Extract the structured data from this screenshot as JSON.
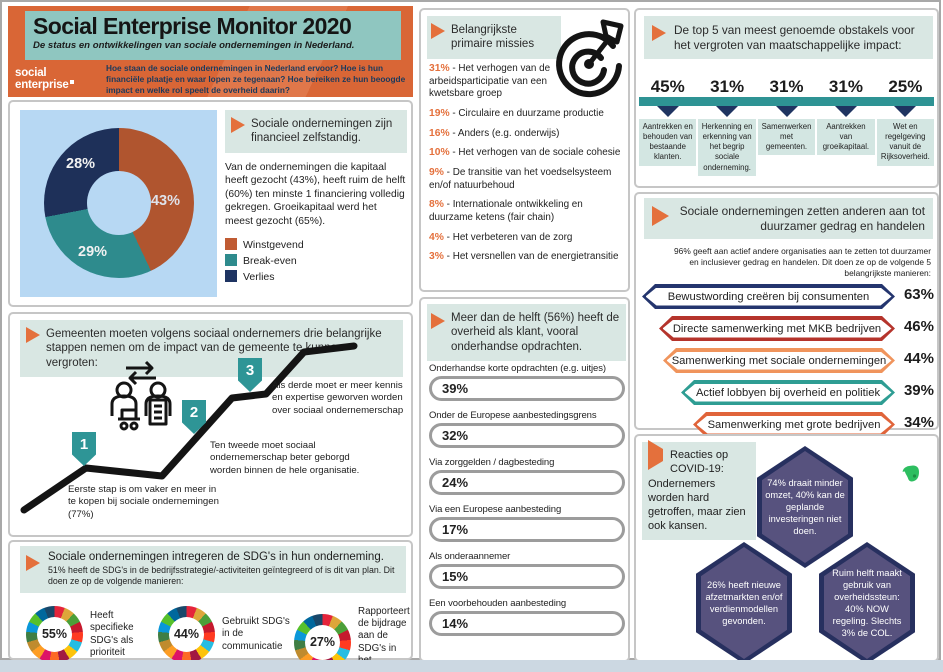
{
  "header": {
    "title": "Social Enterprise Monitor 2020",
    "subtitle": "De status en ontwikkelingen van sociale ondernemingen in Nederland.",
    "logo_line1": "social",
    "logo_line2": "enterprise",
    "intro": "Hoe staan de sociale ondernemingen in Nederland ervoor? Hoe is hun financiële plaatje en waar lopen ze tegenaan? Hoe bereiken ze hun beoogde impact en welke rol speelt de overheid daarin?"
  },
  "finance": {
    "heading": "Sociale ondernemingen zijn financieel zelfstandig.",
    "body": "Van de ondernemingen die kapitaal heeft gezocht (43%), heeft ruim de helft (60%) ten minste 1 financiering volledig gekregen. Groeikapitaal werd het meest gezocht (65%).",
    "donut_labels": [
      "43%",
      "29%",
      "28%"
    ],
    "legend": [
      {
        "label": "Winstgevend",
        "color": "#c05b33"
      },
      {
        "label": "Break-even",
        "color": "#2e8b8d"
      },
      {
        "label": "Verlies",
        "color": "#1e3462"
      }
    ]
  },
  "gemeenten": {
    "heading": "Gemeenten moeten volgens sociaal ondernemers drie belangrijke stappen nemen om de impact van de gemeente te kunnen vergroten:",
    "steps": [
      {
        "num": "1",
        "text": "Eerste stap is om vaker en meer in te kopen bij sociale ondernemingen (77%)"
      },
      {
        "num": "2",
        "text": "Ten tweede moet sociaal ondernemerschap beter geborgd worden binnen de hele organisatie."
      },
      {
        "num": "3",
        "text": "Als derde moet er meer kennis en expertise geworven worden over sociaal ondernemerschap"
      }
    ]
  },
  "sdg": {
    "heading": "Sociale ondernemingen intregeren de SDG's in hun onderneming.",
    "subtext": "51% heeft de SDG's in de bedrijfsstrategie/-activiteiten geïntegreerd of is dit van plan. Dit doen ze op de volgende manieren:",
    "items": [
      {
        "pct": "55%",
        "label": "Heeft specifieke SDG's als prioriteit"
      },
      {
        "pct": "44%",
        "label": "Gebruikt SDG's in de communicatie"
      },
      {
        "pct": "27%",
        "label": "Rapporteert de bijdrage aan de SDG's in het jaarverslag"
      }
    ]
  },
  "missies": {
    "heading": "Belangrijkste primaire missies",
    "separator": "-",
    "items": [
      {
        "pct": "31%",
        "label": "Het verhogen van de arbeidsparticipatie van een kwetsbare groep"
      },
      {
        "pct": "19%",
        "label": "Circulaire en duurzame productie"
      },
      {
        "pct": "16%",
        "label": "Anders (e.g. onderwijs)"
      },
      {
        "pct": "10%",
        "label": "Het verhogen van de sociale cohesie"
      },
      {
        "pct": "9%",
        "label": "De transitie van het voedselsysteem en/of natuurbehoud"
      },
      {
        "pct": "8%",
        "label": "Internationale ontwikkeling en duurzame ketens (fair chain)"
      },
      {
        "pct": "4%",
        "label": "Het verbeteren van de zorg"
      },
      {
        "pct": "3%",
        "label": "Het versnellen van de energietransitie"
      }
    ]
  },
  "overheid": {
    "heading": "Meer dan de helft (56%) heeft de overheid als klant, vooral onderhandse opdrachten.",
    "bars": [
      {
        "label": "Onderhandse korte opdrachten (e.g. uitjes)",
        "pct": "39%",
        "value": 39
      },
      {
        "label": "Onder de Europese aanbestedingsgrens",
        "pct": "32%",
        "value": 32
      },
      {
        "label": "Via zorggelden / dagbesteding",
        "pct": "24%",
        "value": 24
      },
      {
        "label": "Via een Europese aanbesteding",
        "pct": "17%",
        "value": 17
      },
      {
        "label": "Als onderaannemer",
        "pct": "15%",
        "value": 15
      },
      {
        "label": "Een voorbehouden aanbesteding",
        "pct": "14%",
        "value": 14
      }
    ]
  },
  "obstakels": {
    "heading": "De top 5 van meest genoemde obstakels voor het vergroten van maatschappelijke impact:",
    "items": [
      {
        "pct": "45%",
        "label": "Aantrekken en behouden van bestaande klanten."
      },
      {
        "pct": "31%",
        "label": "Herkenning en erkenning van het begrip sociale onderneming."
      },
      {
        "pct": "31%",
        "label": "Samenwerken met gemeenten."
      },
      {
        "pct": "31%",
        "label": "Aantrekken van groeikapitaal."
      },
      {
        "pct": "25%",
        "label": "Wet en regelgeving vanuit de Rijksoverheid."
      }
    ]
  },
  "duurzamer": {
    "heading": "Sociale ondernemingen zetten anderen aan tot duurzamer gedrag en handelen",
    "subtext": "96% geeft aan actief andere organisaties aan te zetten tot duurzamer en inclusiever gedrag en handelen. Dit doen ze op de volgende 5 belangrijkste manieren:",
    "items": [
      {
        "label": "Bewustwording creëren bij consumenten",
        "pct": "63%",
        "color": "#24356e"
      },
      {
        "label": "Directe samenwerking met MKB bedrijven",
        "pct": "46%",
        "color": "#b5342c"
      },
      {
        "label": "Samenwerking met sociale ondernemingen",
        "pct": "44%",
        "color": "#f0945c"
      },
      {
        "label": "Actief lobbyen bij overheid en politiek",
        "pct": "39%",
        "color": "#2e9d93"
      },
      {
        "label": "Samenwerking met grote bedrijven",
        "pct": "34%",
        "color": "#e0643a"
      }
    ]
  },
  "covid": {
    "heading": "Reacties op COVID-19: Ondernemers worden hard getroffen, maar zien ook kansen.",
    "hexagons": [
      {
        "text": "74% draait minder omzet, 40% kan de geplande investeringen niet doen."
      },
      {
        "text": "26% heeft nieuwe afzetmarkten en/of verdienmodellen gevonden."
      },
      {
        "text": "Ruim helft maakt gebruik van overheidssteun: 40% NOW regeling. Slechts 3% de COL."
      }
    ]
  },
  "chart_data": [
    {
      "type": "pie",
      "title": "Sociale ondernemingen zijn financieel zelfstandig.",
      "categories": [
        "Winstgevend",
        "Break-even",
        "Verlies"
      ],
      "values": [
        43,
        29,
        28
      ],
      "colors": [
        "#b0552f",
        "#2e8b8d",
        "#1e3059"
      ],
      "legend_position": "right"
    },
    {
      "type": "bar",
      "title": "Belangrijkste primaire missies",
      "categories": [
        "Het verhogen van de arbeidsparticipatie van een kwetsbare groep",
        "Circulaire en duurzame productie",
        "Anders (e.g. onderwijs)",
        "Het verhogen van de sociale cohesie",
        "De transitie van het voedselsysteem en/of natuurbehoud",
        "Internationale ontwikkeling en duurzame ketens (fair chain)",
        "Het verbeteren van de zorg",
        "Het versnellen van de energietransitie"
      ],
      "values": [
        31,
        19,
        16,
        10,
        9,
        8,
        4,
        3
      ]
    },
    {
      "type": "bar",
      "title": "Meer dan de helft (56%) heeft de overheid als klant, vooral onderhandse opdrachten.",
      "categories": [
        "Onderhandse korte opdrachten (e.g. uitjes)",
        "Onder de Europese aanbestedingsgrens",
        "Via zorggelden / dagbesteding",
        "Via een Europese aanbesteding",
        "Als onderaannemer",
        "Een voorbehouden aanbesteding"
      ],
      "values": [
        39,
        32,
        24,
        17,
        15,
        14
      ],
      "color": "#e4703c"
    },
    {
      "type": "bar",
      "title": "De top 5 van meest genoemde obstakels voor het vergroten van maatschappelijke impact",
      "categories": [
        "Aantrekken en behouden van bestaande klanten.",
        "Herkenning en erkenning van het begrip sociale onderneming.",
        "Samenwerken met gemeenten.",
        "Aantrekken van groeikapitaal.",
        "Wet en regelgeving vanuit de Rijksoverheid."
      ],
      "values": [
        45,
        31,
        31,
        31,
        25
      ]
    },
    {
      "type": "bar",
      "title": "Sociale ondernemingen zetten anderen aan tot duurzamer gedrag en handelen",
      "categories": [
        "Bewustwording creëren bij consumenten",
        "Directe samenwerking met MKB bedrijven",
        "Samenwerking met sociale ondernemingen",
        "Actief lobbyen bij overheid en politiek",
        "Samenwerking met grote bedrijven"
      ],
      "values": [
        63,
        46,
        44,
        39,
        34
      ]
    },
    {
      "type": "bar",
      "title": "Sociale ondernemingen intregeren de SDG's in hun onderneming.",
      "categories": [
        "Heeft specifieke SDG's als prioriteit",
        "Gebruikt SDG's in de communicatie",
        "Rapporteert de bijdrage aan de SDG's in het jaarverslag"
      ],
      "values": [
        55,
        44,
        27
      ]
    }
  ],
  "colors": {
    "accent_orange": "#e4703c",
    "header_orange": "#d96636",
    "title_teal": "#8fc6c0",
    "heading_bg": "#d9e7e3",
    "strong_teal": "#2e9394",
    "navy": "#1f3461",
    "donut_bg": "#b7d8f3",
    "hex_fill": "#57527e",
    "hex_border": "#27305f",
    "evernote_green": "#2dbe60"
  }
}
